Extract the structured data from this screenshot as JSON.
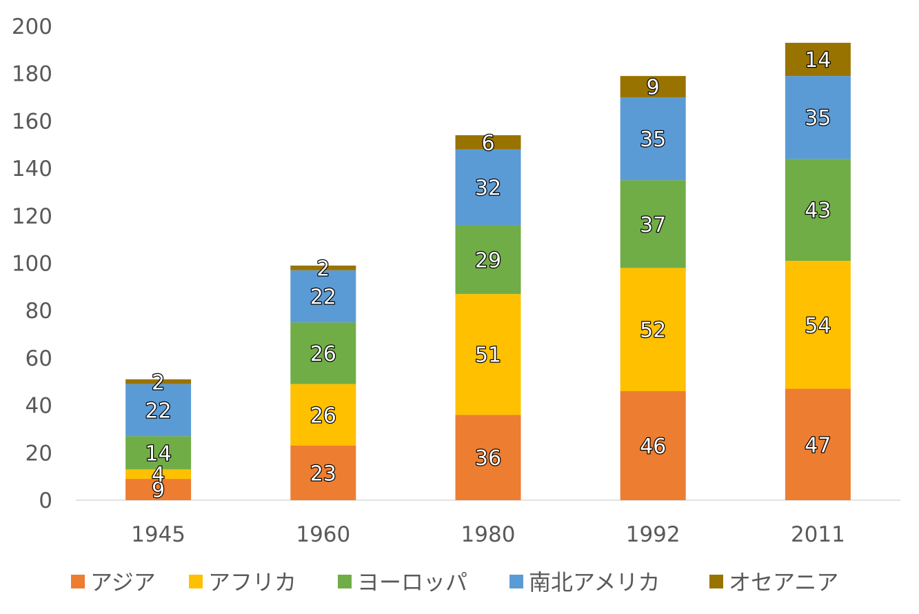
{
  "chart_data": {
    "type": "bar",
    "stacked": true,
    "categories": [
      "1945",
      "1960",
      "1980",
      "1992",
      "2011"
    ],
    "series": [
      {
        "name": "アジア",
        "color": "#ED7D31",
        "values": [
          9,
          23,
          36,
          46,
          47
        ]
      },
      {
        "name": "アフリカ",
        "color": "#FFC000",
        "values": [
          4,
          26,
          51,
          52,
          54
        ]
      },
      {
        "name": "ヨーロッパ",
        "color": "#70AD47",
        "values": [
          14,
          26,
          29,
          37,
          43
        ]
      },
      {
        "name": "南北アメリカ",
        "color": "#5B9BD5",
        "values": [
          22,
          22,
          32,
          35,
          35
        ]
      },
      {
        "name": "オセアニア",
        "color": "#997300",
        "values": [
          2,
          2,
          6,
          9,
          14
        ]
      }
    ],
    "y_ticks": [
      "0",
      "20",
      "40",
      "60",
      "80",
      "100",
      "120",
      "140",
      "160",
      "180",
      "200"
    ],
    "ylim": [
      0,
      200
    ],
    "grid": false,
    "data_labels": true,
    "legend": "bottom"
  }
}
